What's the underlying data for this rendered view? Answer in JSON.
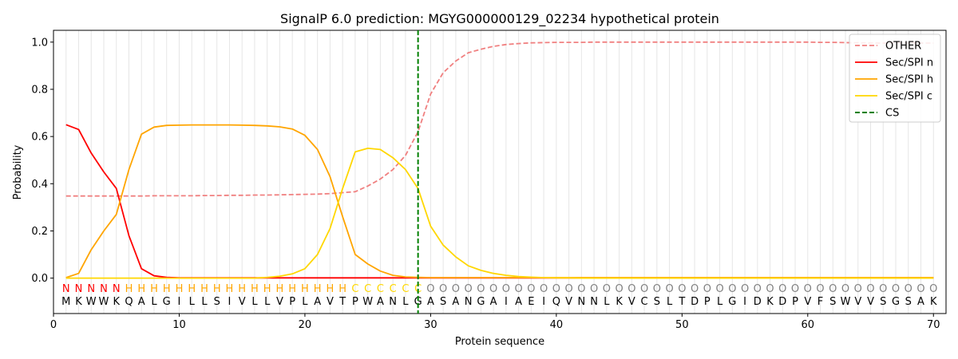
{
  "chart_data": {
    "type": "line",
    "title": "SignalP 6.0 prediction: MGYG000000129_02234 hypothetical protein",
    "xlabel": "Protein sequence",
    "ylabel": "Probability",
    "xlim": [
      0,
      71
    ],
    "ylim": [
      -0.15,
      1.05
    ],
    "xticks": [
      0,
      10,
      20,
      30,
      40,
      50,
      60,
      70
    ],
    "yticks": [
      0.0,
      0.2,
      0.4,
      0.6,
      0.8,
      1.0
    ],
    "grid": "vertical lines at each residue",
    "legend_position": "top-right",
    "cleavage_site": 29,
    "sequence": [
      "M",
      "K",
      "W",
      "W",
      "K",
      "Q",
      "A",
      "L",
      "G",
      "I",
      "L",
      "L",
      "S",
      "I",
      "V",
      "L",
      "L",
      "V",
      "P",
      "L",
      "A",
      "V",
      "T",
      "P",
      "W",
      "A",
      "N",
      "L",
      "G",
      "A",
      "S",
      "A",
      "N",
      "G",
      "A",
      "I",
      "A",
      "E",
      "I",
      "Q",
      "V",
      "N",
      "N",
      "L",
      "K",
      "V",
      "C",
      "S",
      "L",
      "T",
      "D",
      "P",
      "L",
      "G",
      "I",
      "D",
      "K",
      "D",
      "P",
      "V",
      "F",
      "S",
      "W",
      "V",
      "V",
      "S",
      "G",
      "S",
      "A",
      "K"
    ],
    "annotations": [
      "N",
      "N",
      "N",
      "N",
      "N",
      "H",
      "H",
      "H",
      "H",
      "H",
      "H",
      "H",
      "H",
      "H",
      "H",
      "H",
      "H",
      "H",
      "H",
      "H",
      "H",
      "H",
      "H",
      "C",
      "C",
      "C",
      "C",
      "C",
      "C",
      "O",
      "O",
      "O",
      "O",
      "O",
      "O",
      "O",
      "O",
      "O",
      "O",
      "O",
      "O",
      "O",
      "O",
      "O",
      "O",
      "O",
      "O",
      "O",
      "O",
      "O",
      "O",
      "O",
      "O",
      "O",
      "O",
      "O",
      "O",
      "O",
      "O",
      "O",
      "O",
      "O",
      "O",
      "O",
      "O",
      "O",
      "O",
      "O",
      "O",
      "O"
    ],
    "annotation_colors": {
      "N": "#ff0000",
      "H": "#ffa500",
      "C": "#ffd700",
      "O": "#808080"
    },
    "series": [
      {
        "name": "OTHER",
        "color": "#f08080",
        "dash": true,
        "values": [
          0.348,
          0.348,
          0.348,
          0.348,
          0.348,
          0.348,
          0.348,
          0.349,
          0.349,
          0.349,
          0.349,
          0.35,
          0.35,
          0.351,
          0.351,
          0.352,
          0.352,
          0.353,
          0.354,
          0.355,
          0.356,
          0.358,
          0.362,
          0.366,
          0.39,
          0.42,
          0.46,
          0.52,
          0.62,
          0.78,
          0.87,
          0.92,
          0.955,
          0.97,
          0.982,
          0.99,
          0.994,
          0.997,
          0.998,
          0.999,
          0.999,
          0.999,
          1.0,
          1.0,
          1.0,
          1.0,
          1.0,
          1.0,
          1.0,
          1.0,
          1.0,
          1.0,
          1.0,
          1.0,
          1.0,
          1.0,
          1.0,
          1.0,
          1.0,
          1.0,
          0.999,
          0.999,
          0.998,
          0.997,
          0.996,
          0.996,
          0.996,
          0.996,
          0.996,
          0.996
        ]
      },
      {
        "name": "Sec/SPI n",
        "color": "#ff0000",
        "dash": false,
        "values": [
          0.65,
          0.63,
          0.53,
          0.45,
          0.38,
          0.18,
          0.04,
          0.01,
          0.003,
          0.001,
          0.001,
          0.001,
          0.001,
          0.001,
          0.001,
          0.001,
          0.001,
          0.001,
          0.001,
          0.001,
          0.001,
          0.001,
          0.001,
          0.001,
          0.001,
          0.001,
          0.001,
          0.001,
          0.001,
          0.001,
          0.001,
          0.001,
          0.001,
          0.001,
          0.001,
          0.001,
          0.001,
          0.001,
          0.001,
          0.001,
          0.001,
          0.001,
          0.001,
          0.001,
          0.001,
          0.001,
          0.001,
          0.001,
          0.001,
          0.001,
          0.001,
          0.001,
          0.001,
          0.001,
          0.001,
          0.001,
          0.001,
          0.001,
          0.001,
          0.001,
          0.001,
          0.001,
          0.001,
          0.001,
          0.001,
          0.001,
          0.001,
          0.001,
          0.001,
          0.001
        ]
      },
      {
        "name": "Sec/SPI h",
        "color": "#ffa500",
        "dash": false,
        "values": [
          0.002,
          0.02,
          0.12,
          0.2,
          0.27,
          0.46,
          0.61,
          0.64,
          0.647,
          0.648,
          0.649,
          0.649,
          0.649,
          0.649,
          0.648,
          0.647,
          0.645,
          0.641,
          0.632,
          0.605,
          0.545,
          0.43,
          0.26,
          0.1,
          0.06,
          0.03,
          0.012,
          0.005,
          0.003,
          0.002,
          0.002,
          0.002,
          0.002,
          0.002,
          0.002,
          0.002,
          0.002,
          0.002,
          0.002,
          0.002,
          0.002,
          0.002,
          0.002,
          0.002,
          0.002,
          0.002,
          0.002,
          0.002,
          0.002,
          0.002,
          0.002,
          0.002,
          0.002,
          0.002,
          0.002,
          0.002,
          0.002,
          0.002,
          0.002,
          0.002,
          0.002,
          0.002,
          0.002,
          0.002,
          0.002,
          0.002,
          0.002,
          0.002,
          0.002,
          0.002
        ]
      },
      {
        "name": "Sec/SPI c",
        "color": "#ffd700",
        "dash": false,
        "values": [
          0.0,
          0.0,
          0.0,
          0.0,
          0.0,
          0.0,
          0.0,
          0.0,
          0.0,
          0.0,
          0.0,
          0.0,
          0.0,
          0.0,
          0.0,
          0.0,
          0.003,
          0.008,
          0.018,
          0.04,
          0.1,
          0.21,
          0.38,
          0.535,
          0.55,
          0.545,
          0.51,
          0.46,
          0.38,
          0.22,
          0.14,
          0.09,
          0.052,
          0.033,
          0.02,
          0.012,
          0.007,
          0.004,
          0.002,
          0.001,
          0.001,
          0.0,
          0.0,
          0.0,
          0.0,
          0.0,
          0.0,
          0.0,
          0.0,
          0.0,
          0.0,
          0.0,
          0.0,
          0.0,
          0.0,
          0.0,
          0.0,
          0.0,
          0.0,
          0.0,
          0.0,
          0.0,
          0.0,
          0.0,
          0.0,
          0.0,
          0.0,
          0.0,
          0.0,
          0.0
        ]
      },
      {
        "name": "CS",
        "color": "#008000",
        "dash": true,
        "vertical_at": 29
      }
    ]
  }
}
